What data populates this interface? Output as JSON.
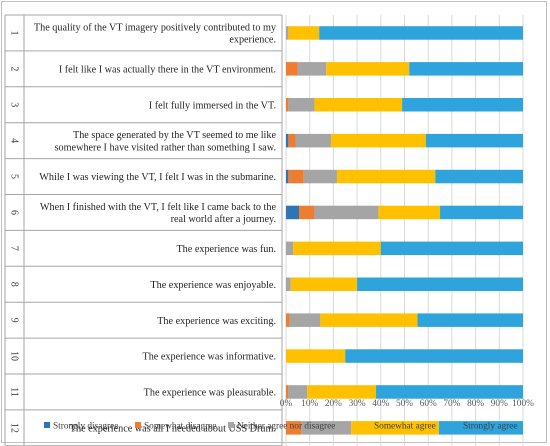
{
  "chart_data": {
    "type": "bar",
    "stacked": true,
    "orientation": "horizontal",
    "title": "",
    "xlabel": "",
    "ylabel": "",
    "xlim": [
      0,
      100
    ],
    "x_ticks": [
      "0%",
      "10%",
      "20%",
      "30%",
      "40%",
      "50%",
      "60%",
      "70%",
      "80%",
      "90%",
      "100%"
    ],
    "grid": true,
    "legend_position": "bottom",
    "categories": [
      {
        "num": "1",
        "lines": [
          "The quality of the VT imagery positively contributed to my",
          "experience."
        ]
      },
      {
        "num": "2",
        "lines": [
          "I felt like I was actually there in the VT environment."
        ]
      },
      {
        "num": "3",
        "lines": [
          "I felt fully immersed in the VT."
        ]
      },
      {
        "num": "4",
        "lines": [
          "The space generated by the VT seemed to me like",
          "somewhere I have visited rather than something I saw."
        ]
      },
      {
        "num": "5",
        "lines": [
          "While I was viewing the VT, I felt I was in the submarine."
        ]
      },
      {
        "num": "6",
        "lines": [
          "When I finished with the VT, I felt like I came back to the",
          "real world after a journey."
        ]
      },
      {
        "num": "7",
        "lines": [
          "The experience was fun."
        ]
      },
      {
        "num": "8",
        "lines": [
          "The experience was enjoyable."
        ]
      },
      {
        "num": "9",
        "lines": [
          "The experience was exciting."
        ]
      },
      {
        "num": "10",
        "lines": [
          "The experience was informative."
        ]
      },
      {
        "num": "11",
        "lines": [
          "The experience was pleasurable."
        ]
      },
      {
        "num": "12",
        "lines": [
          "The experience was all I needed about USS Drum."
        ]
      }
    ],
    "series": [
      {
        "name": "Strongly disagree",
        "color": "#2e75b6",
        "values": [
          0,
          0,
          0,
          1,
          1,
          5.5,
          0,
          0,
          0,
          0,
          0,
          0
        ]
      },
      {
        "name": "Somewhat disagree",
        "color": "#ed7d31",
        "values": [
          0,
          5,
          1,
          3,
          6.5,
          6.5,
          0,
          0,
          1.5,
          0,
          1,
          6.5
        ]
      },
      {
        "name": "Neither agree nor disagree",
        "color": "#a5a5a5",
        "values": [
          1,
          12,
          11,
          15,
          14,
          27,
          3,
          2,
          13,
          0,
          8,
          21
        ]
      },
      {
        "name": "Somewhat agree",
        "color": "#ffc000",
        "values": [
          13,
          35,
          37,
          40,
          41.5,
          26,
          37,
          28,
          41,
          25,
          29,
          37
        ]
      },
      {
        "name": "Strongly agree",
        "color": "#2ea3dc",
        "values": [
          86,
          48,
          51,
          41,
          37,
          35,
          60,
          70,
          44.5,
          75,
          62,
          35.5
        ]
      }
    ]
  }
}
